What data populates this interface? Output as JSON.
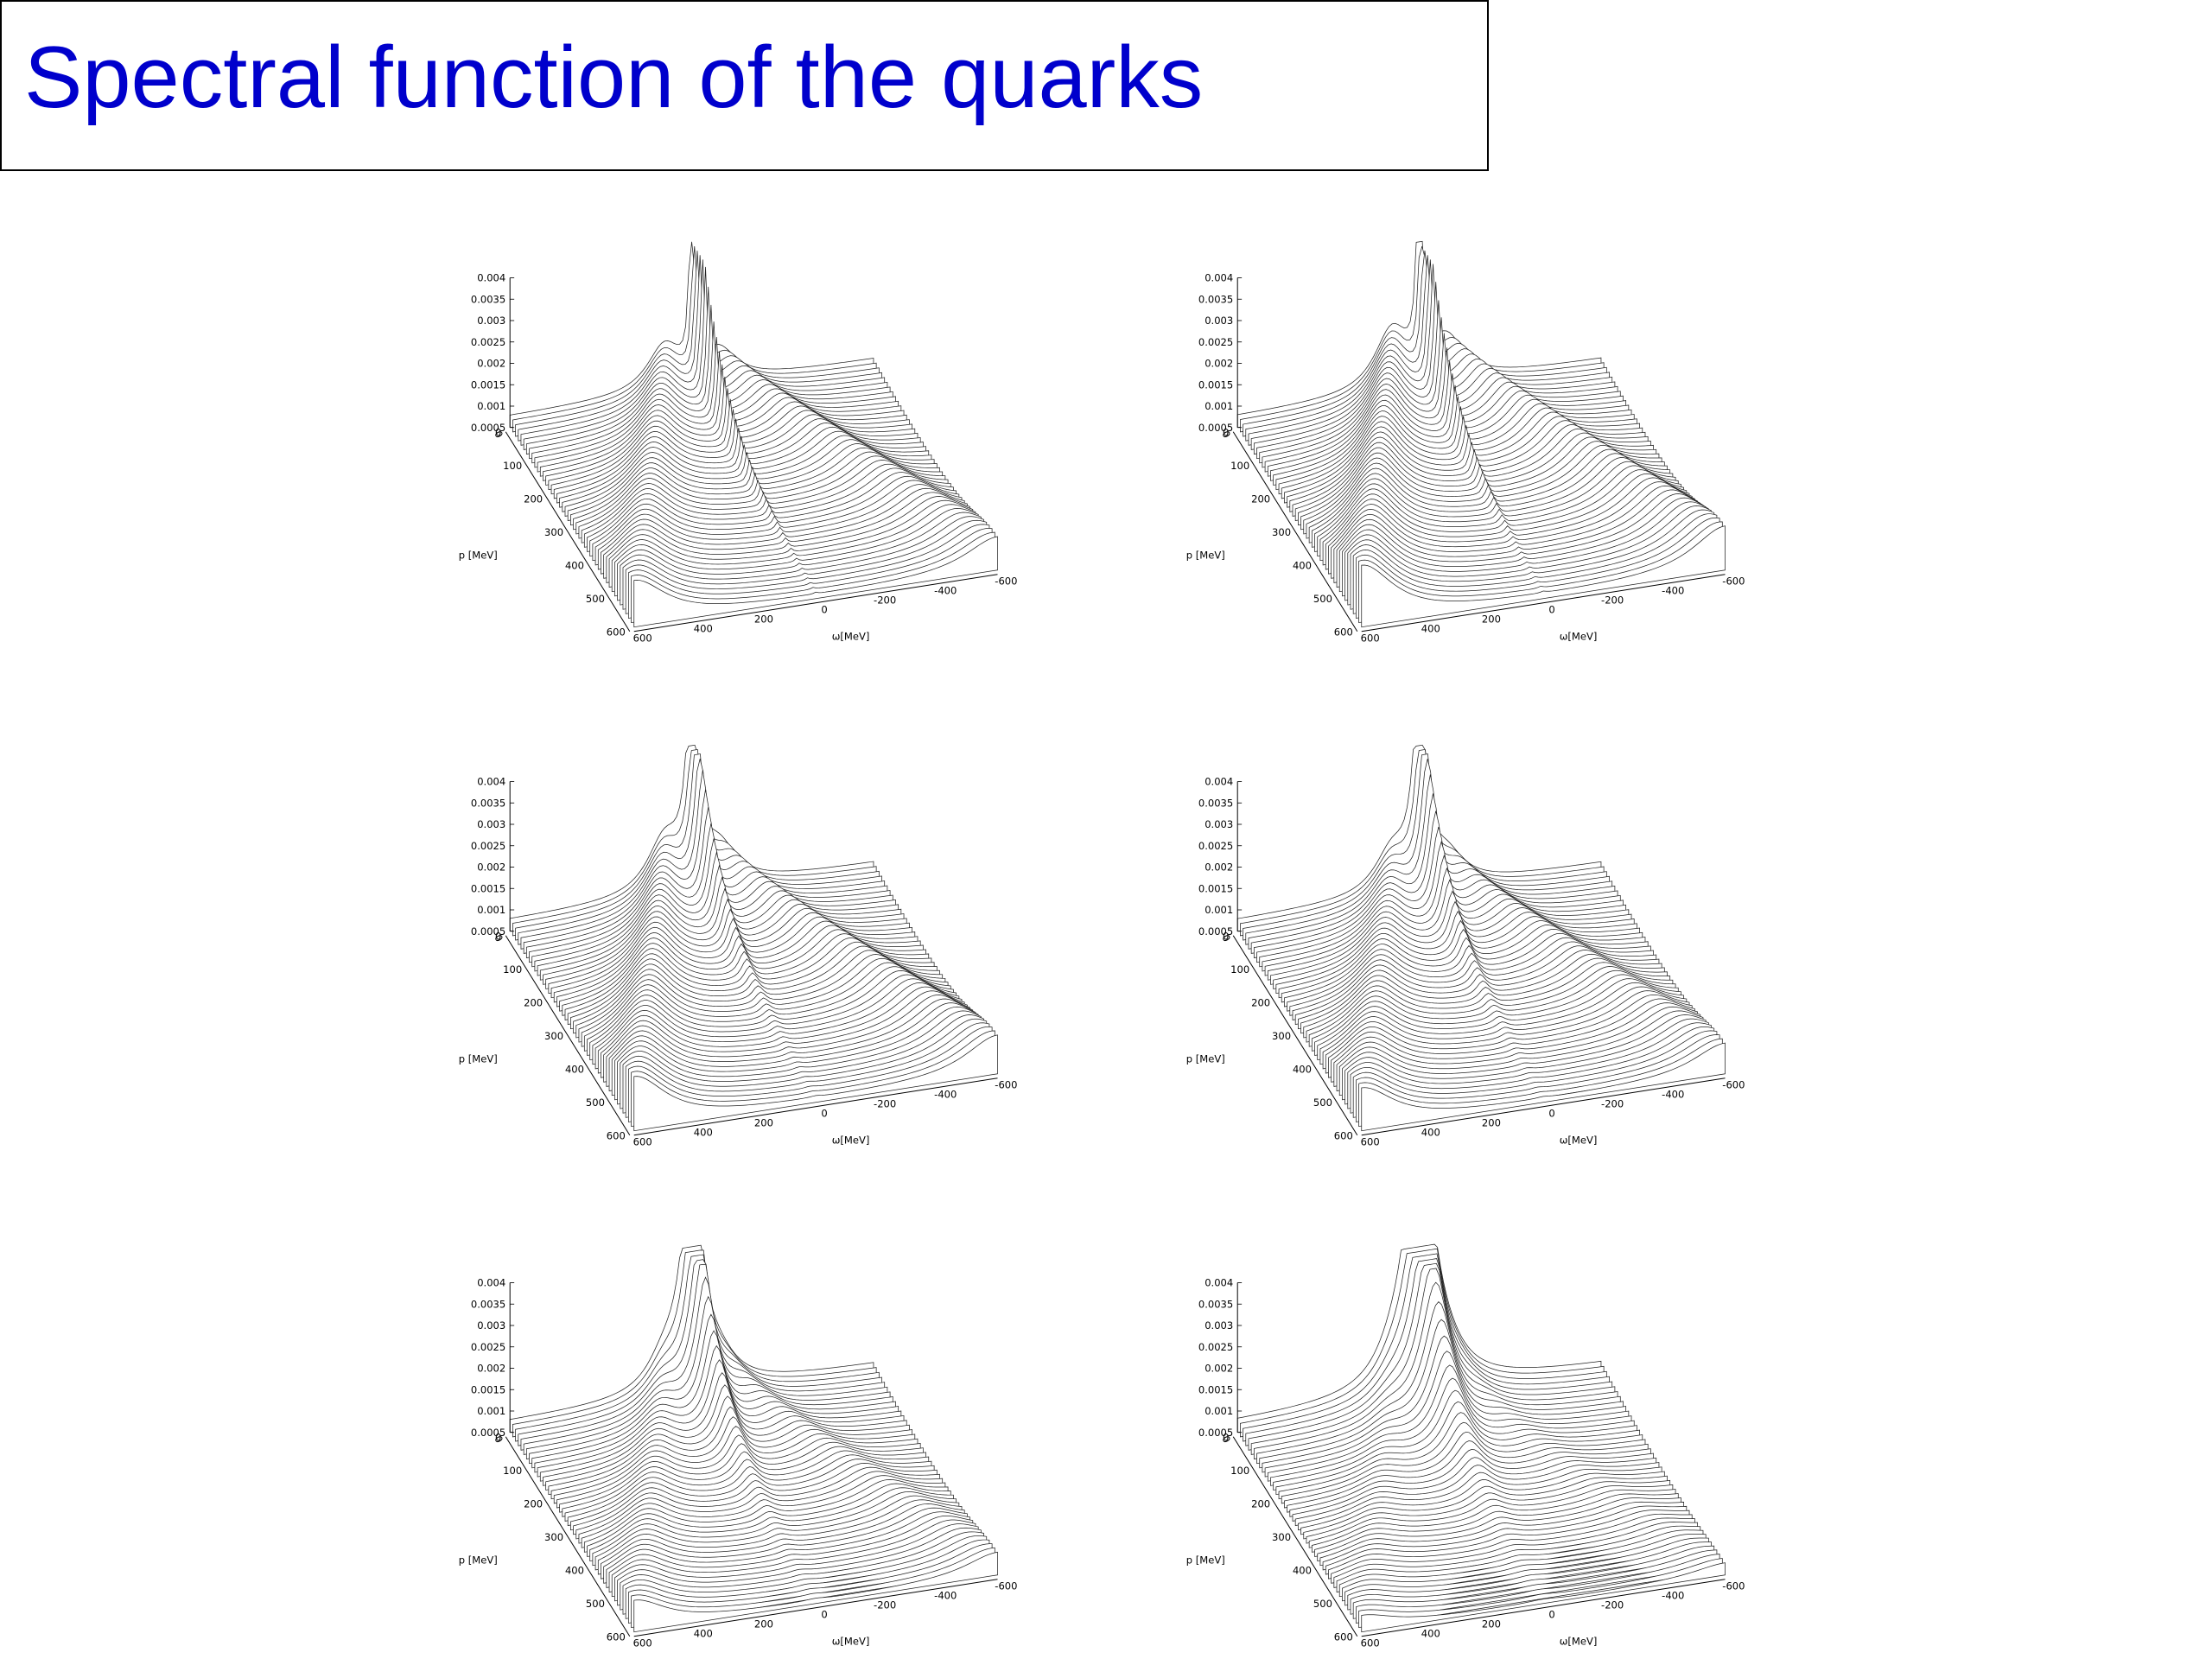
{
  "title": "Spectral function of the quarks",
  "axes": {
    "z_ticks": [
      "0.004",
      "0.0035",
      "0.003",
      "0.0025",
      "0.002",
      "0.0015",
      "0.001",
      "0.0005",
      "0"
    ],
    "p_ticks": [
      "0",
      "100",
      "200",
      "300",
      "400",
      "500",
      "600"
    ],
    "p_label": "p [MeV]",
    "omega_ticks": [
      "600",
      "400",
      "200",
      "0",
      "-200",
      "-400",
      "-600"
    ],
    "omega_label": "ω[MeV]"
  }
}
